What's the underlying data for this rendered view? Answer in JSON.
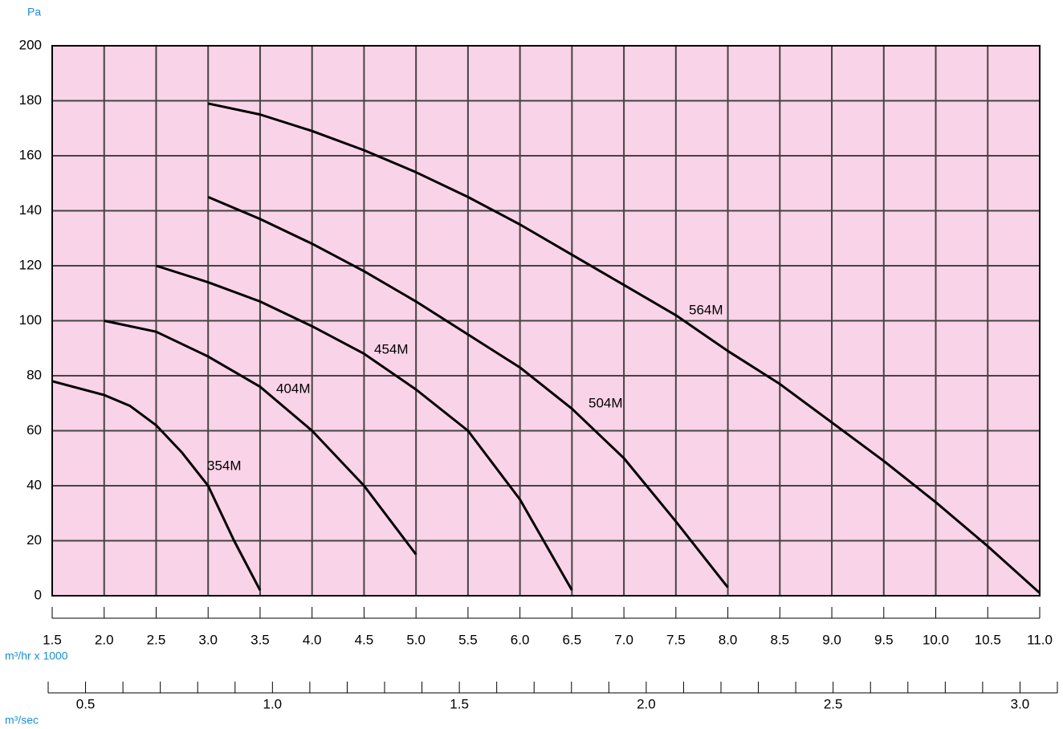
{
  "chart_data": {
    "type": "line",
    "ylabel": "Pa",
    "xlabel": "m³/hr x 1000",
    "x2label": "m³/sec",
    "xlim": [
      1.5,
      11.0
    ],
    "xticks": [
      1.5,
      {
        "value": 2,
        "label": "2.0"
      },
      2.5,
      {
        "value": 3,
        "label": "3.0"
      },
      3.5,
      {
        "value": 4,
        "label": "4.0"
      },
      4.5,
      {
        "value": 5,
        "label": "5.0"
      },
      5.5,
      {
        "value": 6,
        "label": "6.0"
      },
      6.5,
      {
        "value": 7,
        "label": "7.0"
      },
      7.5,
      {
        "value": 8,
        "label": "8.0"
      },
      8.5,
      {
        "value": 9,
        "label": "9.0"
      },
      9.5,
      {
        "value": 10,
        "label": "10.0"
      },
      10.5,
      {
        "value": 11,
        "label": "11.0"
      }
    ],
    "ylim": [
      0,
      200
    ],
    "yticks": [
      0,
      20,
      40,
      60,
      80,
      100,
      120,
      140,
      160,
      180,
      200
    ],
    "x2lim": [
      0.4,
      3.1
    ],
    "x2ticks": [
      0.5,
      {
        "value": 1,
        "label": "1.0"
      },
      1.5,
      {
        "value": 2,
        "label": "2.0"
      },
      2.5,
      {
        "value": 3,
        "label": "3.0"
      }
    ],
    "x2minorticks": [
      0.4,
      0.6,
      0.7,
      0.8,
      0.9,
      1.1,
      1.2,
      1.3,
      1.4,
      1.6,
      1.7,
      1.8,
      1.9,
      2.1,
      2.2,
      2.3,
      2.4,
      2.6,
      2.7,
      2.8,
      2.9,
      3.1
    ],
    "grid": true,
    "background": "#f9d3e8",
    "grid_color": "#444444",
    "series": [
      {
        "name": "354M",
        "color": "#000000",
        "x": [
          1.5,
          2.0,
          2.25,
          2.5,
          2.75,
          3.0,
          3.25,
          3.5
        ],
        "values": [
          78,
          73,
          69,
          62,
          52,
          40,
          20,
          2
        ]
      },
      {
        "name": "404M",
        "color": "#000000",
        "x": [
          2.0,
          2.5,
          3.0,
          3.5,
          4.0,
          4.5,
          5.0
        ],
        "values": [
          100,
          96,
          87,
          76,
          60,
          40,
          15
        ]
      },
      {
        "name": "454M",
        "color": "#000000",
        "x": [
          2.5,
          3.0,
          3.5,
          4.0,
          4.5,
          5.0,
          5.5,
          6.0,
          6.5
        ],
        "values": [
          120,
          114,
          107,
          98,
          88,
          75,
          60,
          35,
          2
        ]
      },
      {
        "name": "504M",
        "color": "#000000",
        "x": [
          3.0,
          3.5,
          4.0,
          4.5,
          5.0,
          5.5,
          6.0,
          6.5,
          7.0,
          7.5,
          8.0
        ],
        "values": [
          145,
          137,
          128,
          118,
          107,
          95,
          83,
          68,
          50,
          27,
          3
        ]
      },
      {
        "name": "564M",
        "color": "#000000",
        "x": [
          3.0,
          3.5,
          4.0,
          4.5,
          5.0,
          5.5,
          6.0,
          6.5,
          7.0,
          7.5,
          8.0,
          8.5,
          9.0,
          9.5,
          10.0,
          10.5,
          11.0
        ],
        "values": [
          179,
          175,
          169,
          162,
          154,
          145,
          135,
          124,
          113,
          102,
          89,
          77,
          63,
          49,
          34,
          18,
          1
        ]
      }
    ]
  }
}
